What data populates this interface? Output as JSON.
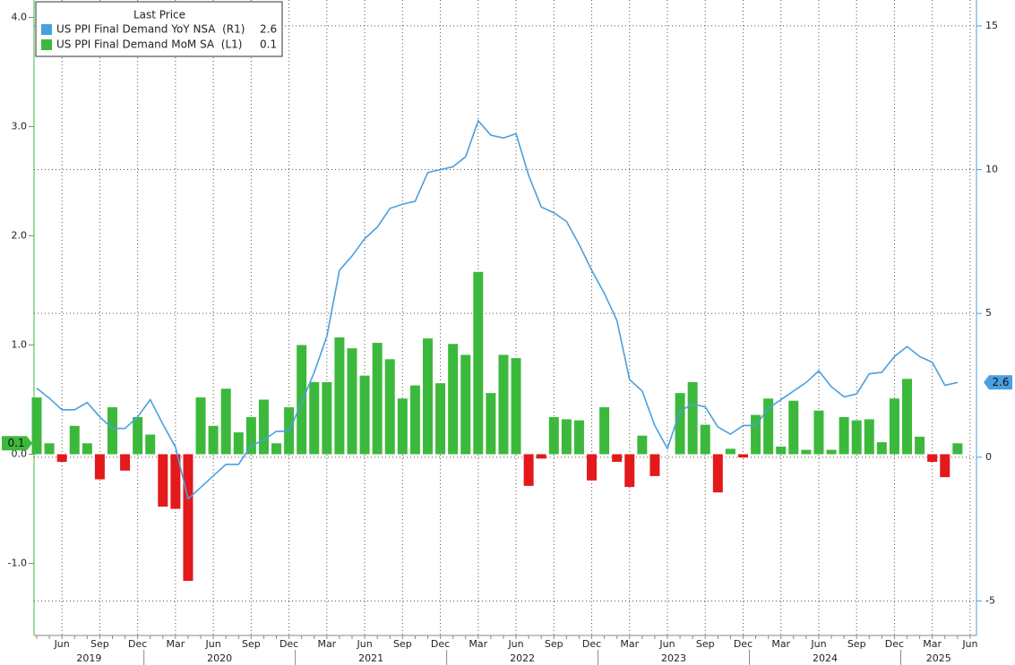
{
  "chart_data": {
    "type": "bar_line",
    "legend_title": "Last Price",
    "categories": [
      null,
      null,
      "Jun",
      null,
      null,
      "Sep",
      null,
      null,
      "Dec",
      null,
      null,
      "Mar",
      null,
      null,
      "Jun",
      null,
      null,
      "Sep",
      null,
      null,
      "Dec",
      null,
      null,
      "Mar",
      null,
      null,
      "Jun",
      null,
      null,
      "Sep",
      null,
      null,
      "Dec",
      null,
      null,
      "Mar",
      null,
      null,
      "Jun",
      null,
      null,
      "Sep",
      null,
      null,
      "Dec",
      null,
      null,
      "Mar",
      null,
      null,
      "Jun",
      null,
      null,
      "Sep",
      null,
      null,
      "Dec",
      null,
      null,
      "Mar",
      null,
      null,
      "Jun",
      null,
      null,
      "Sep",
      null,
      null,
      "Dec",
      null,
      null,
      "Mar",
      null,
      null,
      "Jun"
    ],
    "years": [
      "2019",
      "2020",
      "2021",
      "2022",
      "2023",
      "2024",
      "2025"
    ],
    "series": [
      {
        "name": "US PPI Final Demand YoY NSA  (R1)",
        "color": "#4a9fe0",
        "axis": "y2",
        "values": [
          2.4,
          2.05,
          1.65,
          1.65,
          1.9,
          1.4,
          1.0,
          1.0,
          1.4,
          2.0,
          1.15,
          0.35,
          -1.45,
          -1.05,
          -0.65,
          -0.25,
          -0.25,
          0.4,
          0.6,
          0.9,
          0.9,
          1.9,
          2.95,
          4.2,
          6.5,
          7.0,
          7.6,
          8.0,
          8.65,
          8.8,
          8.9,
          9.9,
          10.0,
          10.1,
          10.45,
          11.7,
          11.2,
          11.1,
          11.25,
          9.8,
          8.7,
          8.5,
          8.2,
          7.4,
          6.5,
          5.7,
          4.75,
          2.7,
          2.3,
          1.1,
          0.3,
          1.6,
          1.85,
          1.75,
          1.05,
          0.8,
          1.1,
          1.1,
          1.7,
          2.0,
          2.3,
          2.6,
          3.0,
          2.45,
          2.1,
          2.2,
          2.9,
          2.95,
          3.5,
          3.85,
          3.5,
          3.3,
          2.5,
          2.6,
          null
        ]
      },
      {
        "name": "US PPI Final Demand MoM SA  (L1)",
        "color": "#3cb93c",
        "negative_color": "#e3191b",
        "values": [
          0.52,
          0.1,
          -0.07,
          0.26,
          0.1,
          -0.23,
          0.43,
          -0.15,
          0.34,
          0.18,
          -0.48,
          -0.5,
          -1.16,
          0.52,
          0.26,
          0.6,
          0.2,
          0.34,
          0.5,
          0.1,
          0.43,
          1.0,
          0.66,
          0.66,
          1.07,
          0.97,
          0.72,
          1.02,
          0.87,
          0.51,
          0.63,
          1.06,
          0.65,
          1.01,
          0.91,
          1.67,
          0.56,
          0.91,
          0.88,
          -0.29,
          -0.04,
          0.34,
          0.32,
          0.31,
          -0.24,
          0.43,
          -0.07,
          -0.3,
          0.17,
          -0.2,
          0.0,
          0.56,
          0.66,
          0.27,
          -0.35,
          0.05,
          -0.03,
          0.36,
          0.51,
          0.07,
          0.49,
          0.04,
          0.4,
          0.04,
          0.34,
          0.31,
          0.32,
          0.11,
          0.51,
          0.69,
          0.16,
          -0.07,
          -0.21,
          0.1,
          null
        ]
      }
    ],
    "ylim": [
      -1.66,
      4.16
    ],
    "yticks": [
      {
        "value": -1,
        "label": "-1.0"
      },
      {
        "value": 0,
        "label": "0.0"
      },
      {
        "value": 1,
        "label": "1.0"
      },
      {
        "value": 2,
        "label": "2.0"
      },
      {
        "value": 3,
        "label": "3.0"
      },
      {
        "value": 4,
        "label": "4.0"
      }
    ],
    "y2lim": [
      -6.2,
      15.9
    ],
    "y2ticks": [
      -5,
      0,
      5,
      10,
      15
    ],
    "grid": true,
    "legend": "upper left"
  }
}
